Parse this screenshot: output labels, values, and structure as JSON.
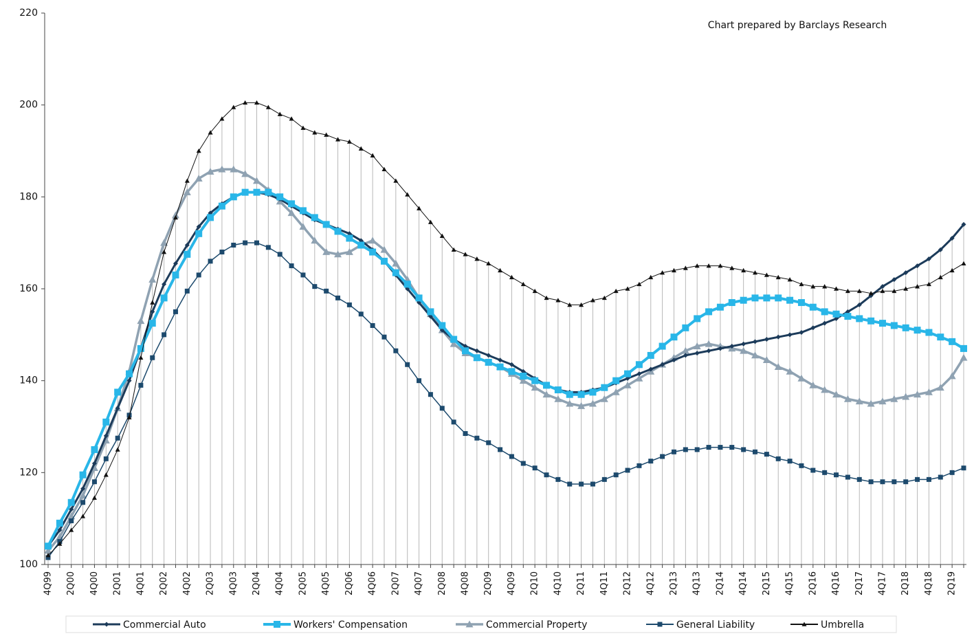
{
  "chart_data": {
    "type": "line",
    "annotation": "Chart prepared by Barclays Research",
    "categories": [
      "4Q99",
      null,
      "2Q00",
      null,
      "4Q00",
      null,
      "2Q01",
      null,
      "4Q01",
      null,
      "2Q02",
      null,
      "4Q02",
      null,
      "2Q03",
      null,
      "4Q03",
      null,
      "2Q04",
      null,
      "4Q04",
      null,
      "2Q05",
      null,
      "4Q05",
      null,
      "2Q06",
      null,
      "4Q06",
      null,
      "2Q07",
      null,
      "4Q07",
      null,
      "2Q08",
      null,
      "4Q08",
      null,
      "2Q09",
      null,
      "4Q09",
      null,
      "2Q10",
      null,
      "4Q10",
      null,
      "2Q11",
      null,
      "4Q11",
      null,
      "2Q12",
      null,
      "4Q12",
      null,
      "2Q13",
      null,
      "4Q13",
      null,
      "2Q14",
      null,
      "4Q14",
      null,
      "2Q15",
      null,
      "4Q15",
      null,
      "2Q16",
      null,
      "4Q16",
      null,
      "2Q17",
      null,
      "4Q17",
      null,
      "2Q18",
      null,
      "4Q18",
      null,
      "2Q19",
      null
    ],
    "ylim": [
      100,
      220
    ],
    "yticks": [
      100,
      120,
      140,
      160,
      180,
      200,
      220
    ],
    "grid": false,
    "legend": "bottom",
    "series": [
      {
        "name": "Commercial Auto",
        "color": "#1c3b5a",
        "marker": "diamond",
        "values": [
          104,
          107.5,
          112,
          116.5,
          122,
          128,
          134,
          140,
          147,
          155,
          161,
          165.5,
          169.5,
          173.5,
          176.5,
          178.5,
          180,
          181,
          181,
          180.5,
          179.5,
          178,
          176.5,
          175,
          174,
          173,
          172,
          170.5,
          168.5,
          166,
          163,
          160,
          157,
          154,
          151,
          149,
          147.5,
          146.5,
          145.5,
          144.5,
          143.5,
          142,
          140.5,
          139,
          138,
          137.5,
          137.5,
          138,
          138.5,
          139.5,
          140.5,
          141.5,
          142.5,
          143.5,
          144.5,
          145.5,
          146,
          146.5,
          147,
          147.5,
          148,
          148.5,
          149,
          149.5,
          150,
          150.5,
          151.5,
          152.5,
          153.5,
          155,
          156.5,
          158.5,
          160.5,
          162,
          163.5,
          165,
          166.5,
          168.5,
          171,
          174
        ]
      },
      {
        "name": "Workers' Compensation",
        "color": "#29b6e8",
        "marker": "square",
        "values": [
          104,
          109,
          113.5,
          119.5,
          125,
          131,
          137.5,
          141.5,
          147,
          152.5,
          158,
          163,
          167.5,
          172,
          175.5,
          178,
          180,
          181,
          181,
          181,
          180,
          178.5,
          177,
          175.5,
          174,
          172.5,
          171,
          169.5,
          168,
          166,
          163.5,
          161,
          158,
          155,
          152,
          149,
          146.5,
          145,
          144,
          143,
          142,
          141,
          140,
          139,
          138,
          137,
          137,
          137.5,
          138.5,
          140,
          141.5,
          143.5,
          145.5,
          147.5,
          149.5,
          151.5,
          153.5,
          155,
          156,
          157,
          157.5,
          158,
          158,
          158,
          157.5,
          157,
          156,
          155,
          154.5,
          154,
          153.5,
          153,
          152.5,
          152,
          151.5,
          151,
          150.5,
          149.5,
          148.5,
          147
        ]
      },
      {
        "name": "Commercial Property",
        "color": "#8fa2b2",
        "marker": "triangle",
        "values": [
          103,
          106,
          110.5,
          115,
          121,
          127,
          134,
          142,
          153,
          162,
          170,
          176,
          181,
          184,
          185.5,
          186,
          186,
          185,
          183.5,
          181.5,
          179,
          176.5,
          173.5,
          170.5,
          168,
          167.5,
          168,
          169.5,
          170.5,
          168.5,
          165.5,
          162,
          158,
          154.5,
          151,
          148,
          146,
          145,
          144,
          143,
          141.5,
          140,
          138.5,
          137,
          136,
          135,
          134.5,
          135,
          136,
          137.5,
          139,
          140.5,
          142,
          143.5,
          145,
          146.5,
          147.5,
          148,
          147.5,
          147,
          146.5,
          145.5,
          144.5,
          143,
          142,
          140.5,
          139,
          138,
          137,
          136,
          135.5,
          135,
          135.5,
          136,
          136.5,
          137,
          137.5,
          138.5,
          141,
          145
        ]
      },
      {
        "name": "General Liability",
        "color": "#1d4a6d",
        "marker": "square-small",
        "values": [
          101.5,
          105,
          109.5,
          113.5,
          118,
          123,
          127.5,
          132.5,
          139,
          145,
          150,
          155,
          159.5,
          163,
          166,
          168,
          169.5,
          170,
          170,
          169,
          167.5,
          165,
          163,
          160.5,
          159.5,
          158,
          156.5,
          154.5,
          152,
          149.5,
          146.5,
          143.5,
          140,
          137,
          134,
          131,
          128.5,
          127.5,
          126.5,
          125,
          123.5,
          122,
          121,
          119.5,
          118.5,
          117.5,
          117.5,
          117.5,
          118.5,
          119.5,
          120.5,
          121.5,
          122.5,
          123.5,
          124.5,
          125,
          125,
          125.5,
          125.5,
          125.5,
          125,
          124.5,
          124,
          123,
          122.5,
          121.5,
          120.5,
          120,
          119.5,
          119,
          118.5,
          118,
          118,
          118,
          118,
          118.5,
          118.5,
          119,
          120,
          121
        ]
      },
      {
        "name": "Umbrella",
        "color": "#111111",
        "marker": "triangle-small",
        "values": [
          102,
          104.5,
          107.5,
          110.5,
          114.5,
          119.5,
          125,
          132,
          145,
          157,
          168,
          175.5,
          183.5,
          190,
          194,
          197,
          199.5,
          200.5,
          200.5,
          199.5,
          198,
          197,
          195,
          194,
          193.5,
          192.5,
          192,
          190.5,
          189,
          186,
          183.5,
          180.5,
          177.5,
          174.5,
          171.5,
          168.5,
          167.5,
          166.5,
          165.5,
          164,
          162.5,
          161,
          159.5,
          158,
          157.5,
          156.5,
          156.5,
          157.5,
          158,
          159.5,
          160,
          161,
          162.5,
          163.5,
          164,
          164.5,
          165,
          165,
          165,
          164.5,
          164,
          163.5,
          163,
          162.5,
          162,
          161,
          160.5,
          160.5,
          160,
          159.5,
          159.5,
          159,
          159.5,
          159.5,
          160,
          160.5,
          161,
          162.5,
          164,
          165.5
        ]
      }
    ]
  }
}
